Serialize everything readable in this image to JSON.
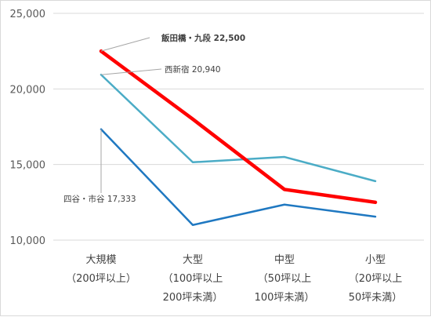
{
  "chart_data": {
    "type": "line",
    "title": "",
    "xlabel": "",
    "ylabel": "",
    "ylim": [
      10000,
      25000
    ],
    "y_ticks": [
      "10,000",
      "15,000",
      "20,000",
      "25,000"
    ],
    "categories": [
      [
        "大規模",
        "（200坪以上）"
      ],
      [
        "大型",
        "（100坪以上",
        "200坪未満）"
      ],
      [
        "中型",
        "（50坪以上",
        "100坪未満）"
      ],
      [
        "小型",
        "（20坪以上",
        "50坪未満）"
      ]
    ],
    "grid": true,
    "series": [
      {
        "name": "飯田橋・九段",
        "values": [
          22500,
          18000,
          13350,
          12500
        ],
        "color": "#ff0000",
        "width": 4.5,
        "label": "飯田橋・九段 22,500",
        "label_bold": true
      },
      {
        "name": "西新宿",
        "values": [
          20940,
          15150,
          15500,
          13900
        ],
        "color": "#4bacc6",
        "width": 2.5,
        "label": "西新宿 20,940",
        "label_bold": false
      },
      {
        "name": "四谷・市谷",
        "values": [
          17333,
          11000,
          12350,
          11550
        ],
        "color": "#1f78c1",
        "width": 2.5,
        "label": "四谷・市谷 17,333",
        "label_bold": false
      }
    ]
  }
}
